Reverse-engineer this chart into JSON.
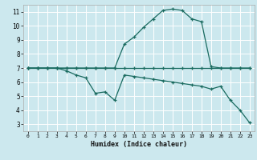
{
  "title": "",
  "xlabel": "Humidex (Indice chaleur)",
  "bg_color": "#cce8ee",
  "grid_color": "#ffffff",
  "line_color": "#1a6b60",
  "xlim": [
    -0.5,
    23.5
  ],
  "ylim": [
    2.5,
    11.5
  ],
  "xticks": [
    0,
    1,
    2,
    3,
    4,
    5,
    6,
    7,
    8,
    9,
    10,
    11,
    12,
    13,
    14,
    15,
    16,
    17,
    18,
    19,
    20,
    21,
    22,
    23
  ],
  "yticks": [
    3,
    4,
    5,
    6,
    7,
    8,
    9,
    10,
    11
  ],
  "line1_x": [
    0,
    1,
    2,
    3,
    4,
    5,
    6,
    7,
    8,
    9,
    10,
    11,
    12,
    13,
    14,
    15,
    16,
    17,
    18,
    19,
    20,
    21,
    22,
    23
  ],
  "line1_y": [
    7,
    7,
    7,
    7,
    7,
    7,
    7,
    7,
    7,
    7,
    7,
    7,
    7,
    7,
    7,
    7,
    7,
    7,
    7,
    7,
    7,
    7,
    7,
    7
  ],
  "line2_x": [
    0,
    1,
    2,
    3,
    4,
    5,
    6,
    7,
    8,
    9,
    10,
    11,
    12,
    13,
    14,
    15,
    16,
    17,
    18,
    19,
    20,
    21,
    22,
    23
  ],
  "line2_y": [
    7,
    7,
    7,
    7,
    6.8,
    6.5,
    6.3,
    5.2,
    5.3,
    4.7,
    6.5,
    6.4,
    6.3,
    6.2,
    6.1,
    6.0,
    5.9,
    5.8,
    5.7,
    5.5,
    5.7,
    4.7,
    4.0,
    3.1
  ],
  "line3_x": [
    0,
    1,
    2,
    3,
    4,
    5,
    6,
    7,
    8,
    9,
    10,
    11,
    12,
    13,
    14,
    15,
    16,
    17,
    18,
    19,
    20,
    21,
    22,
    23
  ],
  "line3_y": [
    7,
    7,
    7,
    7,
    7,
    7,
    7,
    7,
    7,
    7,
    8.7,
    9.2,
    9.9,
    10.5,
    11.1,
    11.2,
    11.1,
    10.5,
    10.3,
    7.1,
    7,
    7,
    7,
    7
  ]
}
